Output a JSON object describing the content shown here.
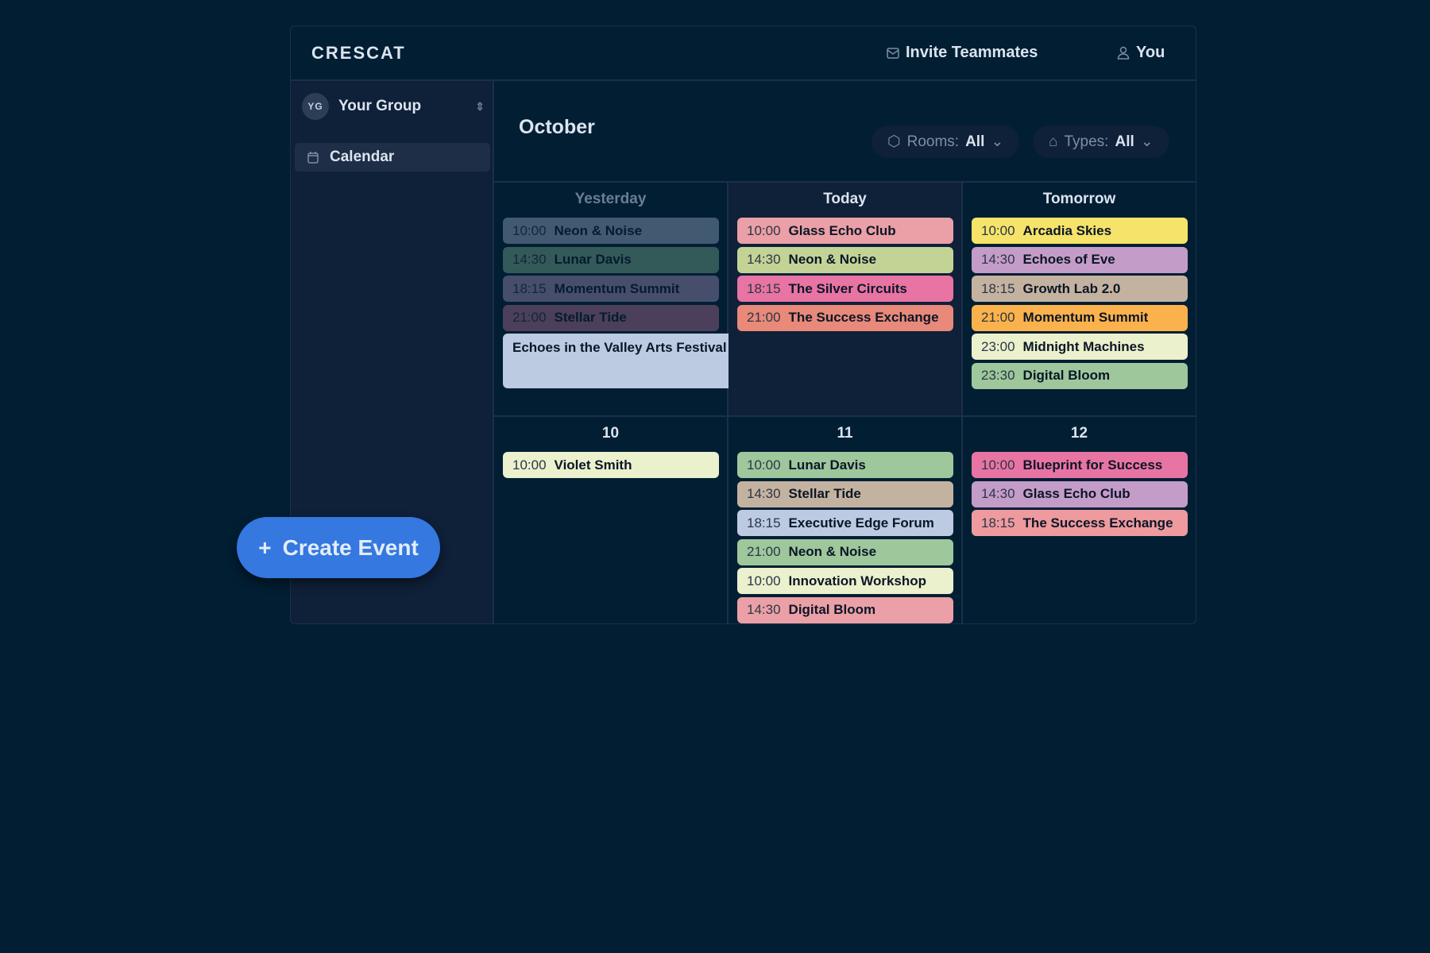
{
  "app": {
    "logo": "CRESCAT",
    "invite": "Invite Teammates",
    "user": "You"
  },
  "sidebar": {
    "group_initials": "YG",
    "group_name": "Your Group",
    "nav": [
      {
        "label": "Calendar",
        "icon": "calendar-icon"
      }
    ]
  },
  "main": {
    "month": "October",
    "filters": [
      {
        "label": "Rooms:",
        "value": "All",
        "icon": "cube-icon"
      },
      {
        "label": "Types:",
        "value": "All",
        "icon": "tag-icon"
      }
    ]
  },
  "days": [
    {
      "label": "Yesterday",
      "past": true,
      "events": [
        {
          "time": "10:00",
          "name": "Neon & Noise",
          "color": "#b7c9e6"
        },
        {
          "time": "14:30",
          "name": "Lunar Davis",
          "color": "#8fc9a0"
        },
        {
          "time": "18:15",
          "name": "Momentum Summit",
          "color": "#c4a9d6"
        },
        {
          "time": "21:00",
          "name": "Stellar Tide",
          "color": "#d47ea8"
        }
      ]
    },
    {
      "label": "Today",
      "events": [
        {
          "time": "10:00",
          "name": "Glass Echo Club",
          "color": "#eaa0a6"
        },
        {
          "time": "14:30",
          "name": "Neon & Noise",
          "color": "#c3d396"
        },
        {
          "time": "18:15",
          "name": "The Silver Circuits",
          "color": "#e874a3"
        },
        {
          "time": "21:00",
          "name": "The Success Exchange",
          "color": "#e8897a"
        }
      ]
    },
    {
      "label": "Tomorrow",
      "events": [
        {
          "time": "10:00",
          "name": "Arcadia Skies",
          "color": "#f5e36a"
        },
        {
          "time": "14:30",
          "name": "Echoes of Eve",
          "color": "#c49cc8"
        },
        {
          "time": "18:15",
          "name": "Growth Lab 2.0",
          "color": "#c4b2a0"
        },
        {
          "time": "21:00",
          "name": "Momentum Summit",
          "color": "#fcb24c"
        },
        {
          "time": "23:00",
          "name": "Midnight Machines",
          "color": "#ebf0cd"
        },
        {
          "time": "23:30",
          "name": "Digital Bloom",
          "color": "#9ec79c"
        }
      ]
    },
    {
      "label": "10",
      "events": [
        {
          "time": "10:00",
          "name": "Violet Smith",
          "color": "#ebf0cd"
        }
      ]
    },
    {
      "label": "11",
      "events": [
        {
          "time": "10:00",
          "name": "Lunar Davis",
          "color": "#9ec79c"
        },
        {
          "time": "14:30",
          "name": "Stellar Tide",
          "color": "#c4b2a0"
        },
        {
          "time": "18:15",
          "name": "Executive Edge Forum",
          "color": "#bccbe2"
        },
        {
          "time": "21:00",
          "name": "Neon & Noise",
          "color": "#9ec79c"
        },
        {
          "time": "10:00",
          "name": "Innovation Workshop",
          "color": "#ebf0cd"
        },
        {
          "time": "14:30",
          "name": "Digital Bloom",
          "color": "#eaa0a6"
        }
      ]
    },
    {
      "label": "12",
      "events": [
        {
          "time": "10:00",
          "name": "Blueprint for Success",
          "color": "#e874a3"
        },
        {
          "time": "14:30",
          "name": "Glass Echo Club",
          "color": "#c49cc8"
        },
        {
          "time": "18:15",
          "name": "The Success Exchange",
          "color": "#ee9a9e"
        }
      ]
    }
  ],
  "multi_day_event": {
    "name": "Echoes in the Valley Arts Festival",
    "icon": "home-icon",
    "color": "#bccbe2"
  },
  "ghost_label": "Event",
  "create_button": {
    "label": "Create Event",
    "icon": "plus-icon",
    "color": "#3478e0"
  }
}
